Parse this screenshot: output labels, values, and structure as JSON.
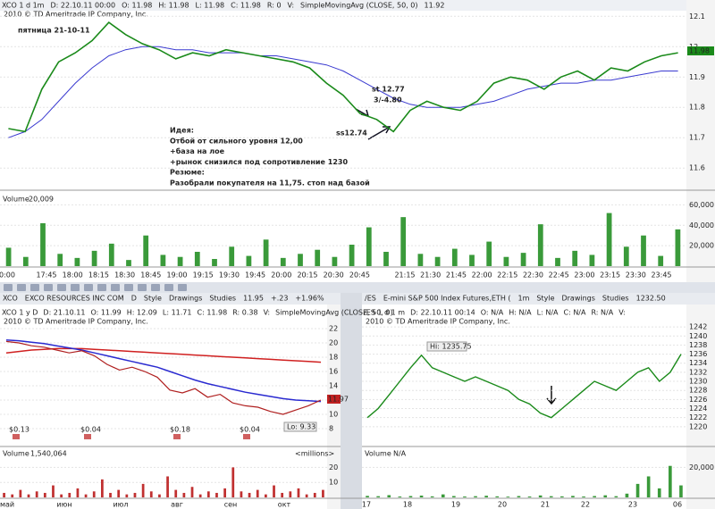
{
  "main": {
    "header": [
      "XCO 1 d 1m",
      "D: 22.10.11 00:00",
      "O: 11.98",
      "H: 11.98",
      "L: 11.98",
      "C: 11.98",
      "R: 0",
      "V:",
      "SimpleMovingAvg (CLOSE, 50, 0)",
      "11.92"
    ],
    "watermark": "2010 © TD Ameritrade IP Company, Inc.",
    "ylim": [
      11.53,
      12.145
    ],
    "yticks": [
      12.1,
      12,
      11.9,
      11.8,
      11.7,
      11.6
    ],
    "close": [
      11.73,
      11.72,
      11.86,
      11.95,
      11.98,
      12.02,
      12.08,
      12.04,
      12.01,
      11.99,
      11.96,
      11.98,
      11.97,
      11.99,
      11.98,
      11.97,
      11.96,
      11.95,
      11.93,
      11.88,
      11.84,
      11.78,
      11.76,
      11.72,
      11.79,
      11.82,
      11.8,
      11.79,
      11.82,
      11.88,
      11.9,
      11.89,
      11.86,
      11.9,
      11.92,
      11.89,
      11.93,
      11.92,
      11.95,
      11.97,
      11.98
    ],
    "sma": [
      11.7,
      11.72,
      11.76,
      11.82,
      11.88,
      11.93,
      11.97,
      11.99,
      12.0,
      12.0,
      11.99,
      11.99,
      11.98,
      11.98,
      11.98,
      11.97,
      11.97,
      11.96,
      11.95,
      11.94,
      11.92,
      11.89,
      11.86,
      11.83,
      11.81,
      11.8,
      11.8,
      11.8,
      11.81,
      11.82,
      11.84,
      11.86,
      11.87,
      11.88,
      11.88,
      11.89,
      11.89,
      11.9,
      11.91,
      11.92,
      11.92
    ],
    "last_price": "11.98",
    "annotations": {
      "day": "пятница 21-10-11",
      "stop": "st 12.77",
      "ratio": "3/-4.80",
      "entry": "ss12.74",
      "idea": [
        "Идея:",
        "Отбой от сильного уровня 12,00",
        "+база на лое",
        "+рынок снизился под сопротивление 1230",
        "Резюме:",
        "Разобрали покупателя на 11,75. стоп над базой"
      ]
    },
    "volume": {
      "label": "Volume",
      "value": "20,009",
      "ylim": [
        0,
        70000
      ],
      "yticks": [
        {
          "value": 60000,
          "label": "60,000"
        },
        {
          "value": 40000,
          "label": "40,000"
        },
        {
          "value": 20000,
          "label": "20,000"
        }
      ],
      "color": "#3a9a3a",
      "values": [
        18000,
        9000,
        42000,
        12000,
        8000,
        15000,
        22000,
        6000,
        30000,
        11000,
        9000,
        14000,
        7000,
        19000,
        10000,
        26000,
        8000,
        12000,
        16000,
        9000,
        21000,
        38000,
        14000,
        48000,
        12000,
        9000,
        17000,
        11000,
        24000,
        9000,
        13000,
        41000,
        8000,
        15000,
        11000,
        52000,
        19000,
        30000,
        10000,
        36000
      ]
    },
    "time_labels": [
      "0:00",
      "17:45",
      "18:00",
      "18:15",
      "18:30",
      "18:45",
      "19:00",
      "19:15",
      "19:30",
      "19:45",
      "20:00",
      "20:15",
      "20:30",
      "20:45",
      "21:15",
      "21:30",
      "21:45",
      "22:00",
      "22:15",
      "22:30",
      "22:45",
      "23:00",
      "23:15",
      "23:30",
      "23:45"
    ]
  },
  "left": {
    "toolbar": [
      "XCO",
      "EXCO RESOURCES INC COM",
      "D",
      "Style",
      "Drawings",
      "Studies",
      "11.95",
      "+.23",
      "+1.96%"
    ],
    "header": [
      "XCO 1 y D",
      "D: 21.10.11",
      "O: 11.99",
      "H: 12.09",
      "L: 11.71",
      "C: 11.98",
      "R: 0.38",
      "V:",
      "SimpleMovingAvg (CLOSE, 50, 0)"
    ],
    "watermark": "2010 © TD Ameritrade IP Company, Inc.",
    "ylim": [
      6.75,
      22.75
    ],
    "yticks": [
      22,
      20,
      18,
      16,
      14,
      12,
      10,
      8
    ],
    "close": [
      20.2,
      20.0,
      19.6,
      19.4,
      19.0,
      18.6,
      18.9,
      18.2,
      17.0,
      16.2,
      16.6,
      16.0,
      15.2,
      13.4,
      13.0,
      13.6,
      12.4,
      12.8,
      11.6,
      11.2,
      11.0,
      10.4,
      10.0,
      10.6,
      11.2,
      12.0
    ],
    "sma": [
      20.4,
      20.3,
      20.1,
      19.9,
      19.6,
      19.3,
      19.0,
      18.6,
      18.2,
      17.8,
      17.4,
      17.0,
      16.6,
      16.0,
      15.4,
      14.8,
      14.3,
      13.9,
      13.5,
      13.1,
      12.8,
      12.5,
      12.2,
      12.0,
      11.9,
      11.8
    ],
    "sma200": [
      18.6,
      18.8,
      19.0,
      19.1,
      19.2,
      19.2,
      19.2,
      19.1,
      19.0,
      18.9,
      18.8,
      18.7,
      18.6,
      18.5,
      18.4,
      18.3,
      18.2,
      18.1,
      18.0,
      17.9,
      17.8,
      17.7,
      17.6,
      17.5,
      17.4,
      17.3
    ],
    "last_price": "11.97",
    "low": "Lo: 9.33",
    "dividends": [
      "$0.13",
      "$0.04",
      "$0.18",
      "$0.04"
    ],
    "volume": {
      "label": "Volume",
      "value": "1,540,064",
      "unit": "<millions>",
      "ylim": [
        0,
        25
      ],
      "yticks": [
        20,
        10
      ],
      "color": "#c03030",
      "values": [
        3,
        2,
        5,
        2,
        4,
        3,
        8,
        2,
        3,
        6,
        2,
        4,
        12,
        3,
        5,
        2,
        3,
        9,
        4,
        2,
        14,
        5,
        3,
        7,
        2,
        4,
        3,
        6,
        20,
        4,
        3,
        5,
        2,
        8,
        3,
        4,
        6,
        2,
        3,
        5
      ]
    },
    "month_labels": [
      "май",
      "июн",
      "июл",
      "авг",
      "сен",
      "окт"
    ]
  },
  "right": {
    "toolbar": [
      "/ES",
      "E-mini S&P 500 Index Futures,ETH (",
      "1m",
      "Style",
      "Drawings",
      "Studies",
      "1232.50"
    ],
    "header": [
      "/ES 1 d 1 m",
      "D: 22.10.11 00:14",
      "O: N/A",
      "H: N/A",
      "L: N/A",
      "C: N/A",
      "R: N/A",
      "V:"
    ],
    "watermark": "2010 © TD Ameritrade IP Company, Inc.",
    "ylim": [
      1217.6,
      1243.2
    ],
    "yticks": [
      1242,
      1240,
      1238,
      1236,
      1234,
      1232,
      1230,
      1228,
      1226,
      1224,
      1222,
      1220
    ],
    "close": [
      1222,
      1224,
      1227,
      1230,
      1233,
      1235.75,
      1233,
      1232,
      1231,
      1230,
      1231,
      1230,
      1229,
      1228,
      1226,
      1225,
      1223,
      1222,
      1224,
      1226,
      1228,
      1230,
      1229,
      1228,
      1230,
      1232,
      1233,
      1230,
      1232,
      1236
    ],
    "high": "Hi: 1235.75",
    "volume": {
      "label": "Volume",
      "value": "N/A",
      "ylim": [
        0,
        25000
      ],
      "yticks": [
        {
          "value": 20000,
          "label": "20,000"
        }
      ],
      "color": "#3a9a3a",
      "values": [
        1000,
        800,
        1500,
        600,
        900,
        1200,
        700,
        2000,
        900,
        600,
        800,
        1100,
        700,
        500,
        900,
        600,
        1300,
        800,
        700,
        1000,
        600,
        900,
        1400,
        800,
        2500,
        9000,
        14000,
        6000,
        21000,
        8000
      ]
    },
    "x_labels": [
      "17",
      "18",
      "19",
      "20",
      "21",
      "22",
      "23",
      "06"
    ]
  }
}
